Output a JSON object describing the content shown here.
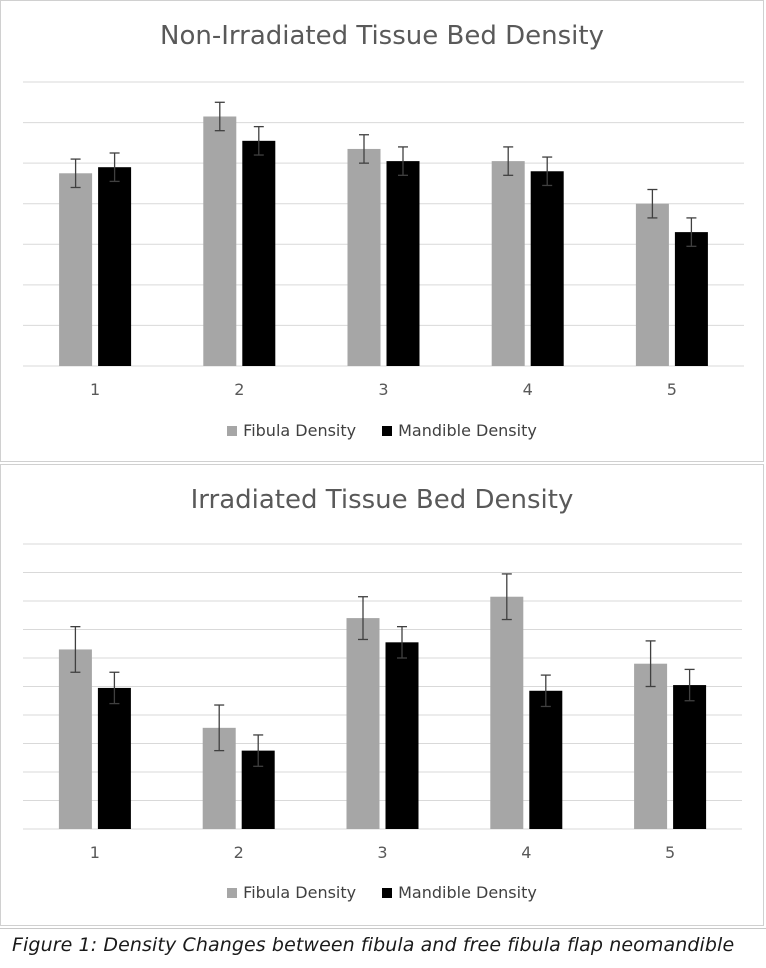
{
  "colors": {
    "fibula": "#a6a6a6",
    "mandible": "#000000",
    "grid": "#d9d9d9",
    "text": "#595959"
  },
  "chart_data": [
    {
      "type": "bar",
      "title": "Non-Irradiated Tissue Bed Density",
      "categories": [
        "1",
        "2",
        "3",
        "4",
        "5"
      ],
      "ylim": [
        0,
        7
      ],
      "grid": true,
      "legend": "bottom",
      "series": [
        {
          "name": "Fibula Density",
          "color": "#a6a6a6",
          "values": [
            4.75,
            6.15,
            5.35,
            5.05,
            4.0
          ],
          "error": [
            0.35,
            0.35,
            0.35,
            0.35,
            0.35
          ]
        },
        {
          "name": "Mandible Density",
          "color": "#000000",
          "values": [
            4.9,
            5.55,
            5.05,
            4.8,
            3.3
          ],
          "error": [
            0.35,
            0.35,
            0.35,
            0.35,
            0.35
          ]
        }
      ]
    },
    {
      "type": "bar",
      "title": "Irradiated Tissue Bed Density",
      "categories": [
        "1",
        "2",
        "3",
        "4",
        "5"
      ],
      "ylim": [
        0,
        10
      ],
      "grid": true,
      "legend": "bottom",
      "series": [
        {
          "name": "Fibula Density",
          "color": "#a6a6a6",
          "values": [
            6.3,
            3.55,
            7.4,
            8.15,
            5.8
          ],
          "error": [
            0.8,
            0.8,
            0.75,
            0.8,
            0.8
          ]
        },
        {
          "name": "Mandible Density",
          "color": "#000000",
          "values": [
            4.95,
            2.75,
            6.55,
            4.85,
            5.05
          ],
          "error": [
            0.55,
            0.55,
            0.55,
            0.55,
            0.55
          ]
        }
      ]
    }
  ],
  "caption": "Figure 1: Density Changes between fibula and free fibula flap neomandible"
}
